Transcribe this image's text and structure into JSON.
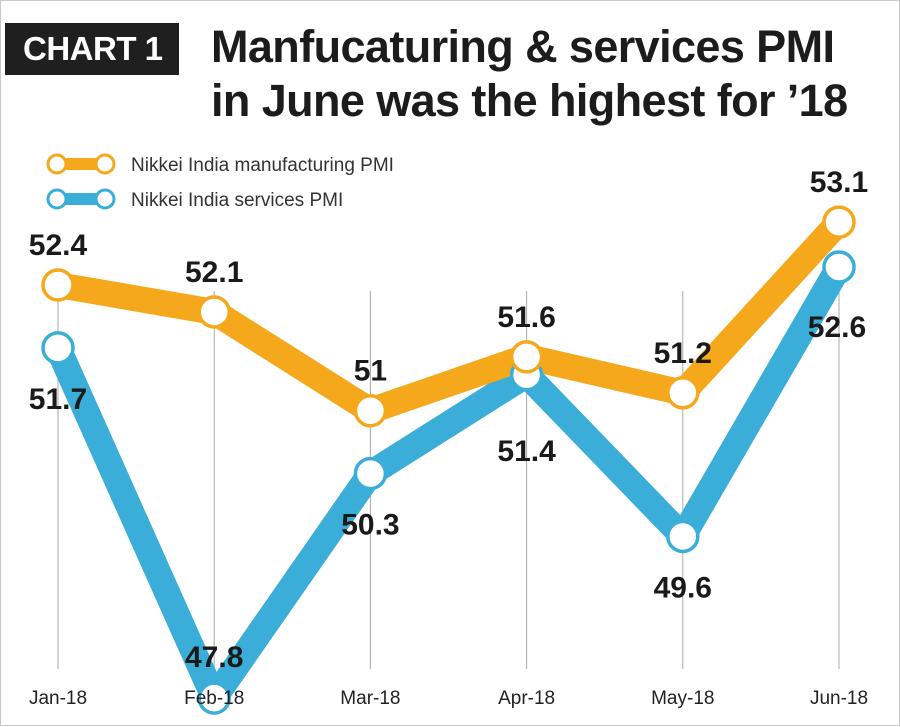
{
  "header": {
    "badge": "CHART 1",
    "title_line1": "Manfucaturing & services PMI",
    "title_line2": "in June was the highest for ’18"
  },
  "colors": {
    "manufacturing": "#F5A81C",
    "services": "#3AAED8",
    "gridline": "#aaaaaa"
  },
  "chart_data": {
    "type": "line",
    "categories": [
      "Jan-18",
      "Feb-18",
      "Mar-18",
      "Apr-18",
      "May-18",
      "Jun-18"
    ],
    "series": [
      {
        "name": "Nikkei India  manufacturing PMI",
        "values": [
          52.4,
          52.1,
          51,
          51.6,
          51.2,
          53.1
        ],
        "labels": [
          "52.4",
          "52.1",
          "51",
          "51.6",
          "51.2",
          "53.1"
        ],
        "color": "#F5A81C"
      },
      {
        "name": "Nikkei India  services PMI",
        "values": [
          51.7,
          47.8,
          50.3,
          51.4,
          49.6,
          52.6
        ],
        "labels": [
          "51.7",
          "47.8",
          "50.3",
          "51.4",
          "49.6",
          "52.6"
        ],
        "color": "#3AAED8"
      }
    ],
    "ylim": [
      47.5,
      53.5
    ],
    "grid": "vertical",
    "legend": "top-left"
  }
}
